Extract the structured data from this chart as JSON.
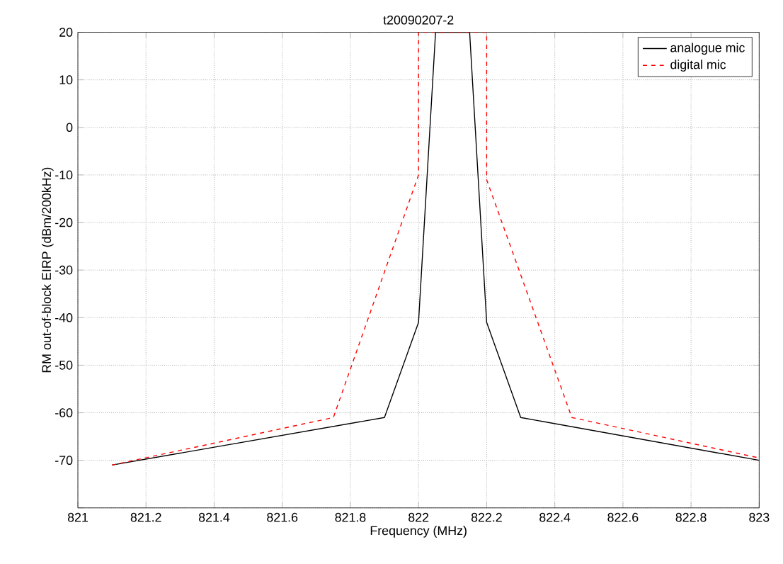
{
  "chart_data": {
    "type": "line",
    "title": "t20090207-2",
    "xlabel": "Frequency (MHz)",
    "ylabel": "RM out-of-block EIRP (dBm/200kHz)",
    "xlim": [
      821,
      823
    ],
    "ylim": [
      -80,
      20
    ],
    "xticks": [
      821,
      821.2,
      821.4,
      821.6,
      821.8,
      822,
      822.2,
      822.4,
      822.6,
      822.8,
      823
    ],
    "yticks": [
      {
        "value": -80,
        "label": null
      },
      -70,
      -60,
      -50,
      -40,
      -30,
      -20,
      -10,
      0,
      10,
      20
    ],
    "grid": true,
    "legend": "top right",
    "marker": "none",
    "series": [
      {
        "name": "analogue mic",
        "color": "#000000",
        "line_style": "solid",
        "x": [
          821.1,
          821.9,
          822,
          822.05,
          822.15,
          822.2,
          822.3,
          823
        ],
        "values": [
          -71,
          -61,
          -41,
          20,
          20,
          -41,
          -61,
          -70
        ]
      },
      {
        "name": "digital mic",
        "color": "#ff0000",
        "line_style": "dashed",
        "x": [
          821.1,
          821.75,
          822,
          822,
          822.2,
          822.2,
          822.45,
          823
        ],
        "values": [
          -71,
          -61,
          -10,
          20,
          20,
          -11,
          -61,
          -69.5
        ]
      }
    ]
  }
}
